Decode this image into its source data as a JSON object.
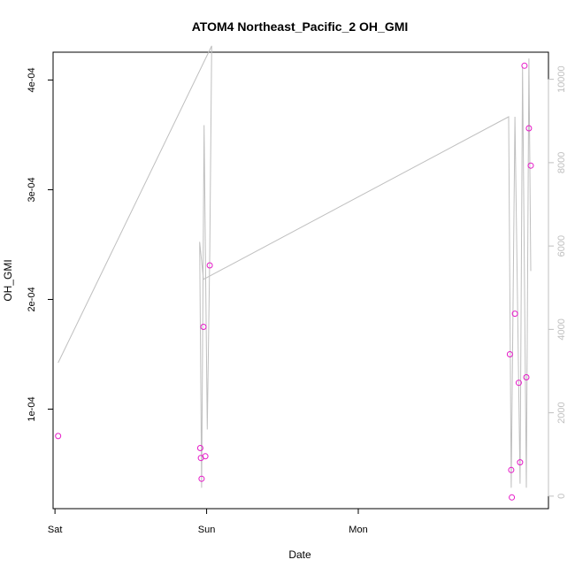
{
  "chart_data": {
    "type": "scatter",
    "title": "ATOM4 Northeast_Pacific_2 OH_GMI",
    "xlabel": "Date",
    "ylabel": "OH_GMI",
    "x_ticks": [
      "Sat",
      "Sun",
      "Mon"
    ],
    "y_ticks": [
      "1e-04",
      "2e-04",
      "3e-04",
      "4e-04"
    ],
    "y2_ticks": [
      "0",
      "2000",
      "4000",
      "6000",
      "8000",
      "10000"
    ],
    "xlim_hours": [
      -0.3,
      78.1
    ],
    "ylim": [
      9.28e-06,
      0.00042536
    ],
    "y2lim": [
      -300,
      10650
    ],
    "grid": false,
    "legend": "none",
    "colors": {
      "points": "#e619c8",
      "altitude_line": "#bfbfbf",
      "axis": "#000000",
      "right_axis": "#bfbfbf"
    },
    "points": [
      {
        "hour": 0.5,
        "value": 7.55e-05
      },
      {
        "hour": 23.0,
        "value": 6.45e-05
      },
      {
        "hour": 23.1,
        "value": 5.55e-05
      },
      {
        "hour": 23.2,
        "value": 3.65e-05
      },
      {
        "hour": 23.5,
        "value": 0.000175
      },
      {
        "hour": 23.8,
        "value": 5.7e-05
      },
      {
        "hour": 24.5,
        "value": 0.000231
      },
      {
        "hour": 72.0,
        "value": 0.00015
      },
      {
        "hour": 72.2,
        "value": 4.45e-05
      },
      {
        "hour": 72.3,
        "value": 1.95e-05
      },
      {
        "hour": 72.8,
        "value": 0.000187
      },
      {
        "hour": 73.4,
        "value": 0.000124
      },
      {
        "hour": 73.6,
        "value": 5.15e-05
      },
      {
        "hour": 74.3,
        "value": 0.000413
      },
      {
        "hour": 74.6,
        "value": 0.000129
      },
      {
        "hour": 75.0,
        "value": 0.000356
      },
      {
        "hour": 75.3,
        "value": 0.000322
      }
    ],
    "altitude_series": [
      {
        "hour": 0.5,
        "alt": 3200
      },
      {
        "hour": 24.8,
        "alt": 10800
      },
      {
        "hour": 24.5,
        "alt": 5800
      },
      {
        "hour": 24.1,
        "alt": 1600
      },
      {
        "hour": 23.6,
        "alt": 8900
      },
      {
        "hour": 23.2,
        "alt": 200
      },
      {
        "hour": 22.9,
        "alt": 6100
      },
      {
        "hour": 23.5,
        "alt": 5200
      },
      {
        "hour": 71.8,
        "alt": 9100
      },
      {
        "hour": 72.2,
        "alt": 200
      },
      {
        "hour": 72.8,
        "alt": 9100
      },
      {
        "hour": 73.6,
        "alt": 300
      },
      {
        "hour": 74.0,
        "alt": 10300
      },
      {
        "hour": 74.6,
        "alt": 200
      },
      {
        "hour": 75.0,
        "alt": 10500
      },
      {
        "hour": 75.3,
        "alt": 5400
      }
    ]
  }
}
